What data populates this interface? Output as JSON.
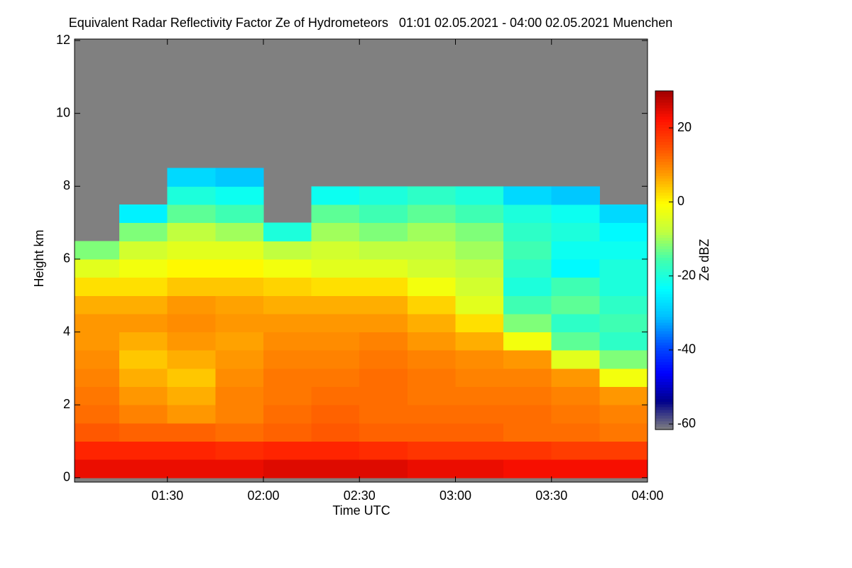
{
  "chart_data": {
    "type": "heatmap",
    "title": "Equivalent Radar Reflectivity Factor Ze of Hydrometeors   01:01 02.05.2021 - 04:00 02.05.2021 Muenchen",
    "x_label": "Time UTC",
    "y_label": "Height km",
    "colorbar_label": "Ze dBZ",
    "x": [
      61,
      75,
      90,
      105,
      120,
      135,
      150,
      165,
      180,
      195,
      210,
      225,
      240
    ],
    "y": [
      0,
      0.5,
      1,
      1.5,
      2,
      2.5,
      3,
      3.5,
      4,
      4.5,
      5,
      5.5,
      6,
      6.5,
      7,
      7.5,
      8,
      8.5
    ],
    "values": [
      [
        24,
        24,
        24,
        24,
        25,
        25,
        25,
        24,
        24,
        23,
        23,
        23
      ],
      [
        20,
        20,
        20,
        19,
        20,
        20,
        19,
        18,
        18,
        18,
        17,
        17
      ],
      [
        14,
        13,
        13,
        12,
        13,
        14,
        13,
        13,
        13,
        12,
        12,
        11
      ],
      [
        12,
        10,
        8,
        10,
        12,
        13,
        12,
        12,
        12,
        12,
        11,
        10
      ],
      [
        11,
        8,
        6,
        10,
        11,
        12,
        12,
        11,
        11,
        11,
        10,
        8
      ],
      [
        10,
        6,
        4,
        9,
        11,
        11,
        12,
        11,
        10,
        10,
        8,
        -2
      ],
      [
        9,
        4,
        6,
        8,
        10,
        10,
        11,
        10,
        9,
        8,
        -4,
        -12
      ],
      [
        8,
        6,
        8,
        7,
        9,
        9,
        10,
        8,
        6,
        -2,
        -14,
        -18
      ],
      [
        8,
        8,
        9,
        8,
        8,
        8,
        8,
        6,
        2,
        -12,
        -18,
        -16
      ],
      [
        6,
        6,
        8,
        7,
        6,
        6,
        6,
        3,
        -4,
        -16,
        -14,
        -18
      ],
      [
        2,
        2,
        4,
        4,
        3,
        2,
        2,
        -2,
        -6,
        -20,
        -16,
        -20
      ],
      [
        -4,
        -2,
        0,
        0,
        -2,
        -4,
        -4,
        -6,
        -8,
        -18,
        -24,
        -20
      ],
      [
        -12,
        -6,
        -4,
        -4,
        -8,
        -6,
        -8,
        -8,
        -10,
        -16,
        -22,
        -22
      ],
      [
        null,
        -12,
        -8,
        -10,
        -20,
        -10,
        -12,
        -10,
        -12,
        -18,
        -20,
        -24
      ],
      [
        null,
        -25,
        -14,
        -16,
        null,
        -14,
        -16,
        -14,
        -16,
        -20,
        -22,
        -28
      ],
      [
        null,
        null,
        -20,
        -22,
        null,
        -22,
        -20,
        -18,
        -20,
        -28,
        -30,
        null
      ],
      [
        null,
        null,
        -28,
        -30,
        null,
        null,
        null,
        null,
        null,
        null,
        null,
        null
      ]
    ],
    "xlim": [
      61,
      240
    ],
    "xticks": [
      {
        "value": 90,
        "label": "01:30"
      },
      {
        "value": 120,
        "label": "02:00"
      },
      {
        "value": 150,
        "label": "02:30"
      },
      {
        "value": 180,
        "label": "03:00"
      },
      {
        "value": 210,
        "label": "03:30"
      },
      {
        "value": 240,
        "label": "04:00"
      }
    ],
    "ylim": [
      -0.12,
      12.04
    ],
    "yticks": [
      0,
      2,
      4,
      6,
      8,
      10,
      12
    ],
    "zlim": [
      -61.5,
      30
    ],
    "zticks": [
      -60,
      -40,
      -20,
      0,
      20
    ],
    "colormap": [
      "#808080",
      "#00008b",
      "#0000ff",
      "#0050ff",
      "#00c0ff",
      "#00ffff",
      "#40ffb0",
      "#c0ff40",
      "#ffff00",
      "#ffa000",
      "#ff5000",
      "#ff1000",
      "#a00000"
    ],
    "nodata_color": "#808080"
  }
}
